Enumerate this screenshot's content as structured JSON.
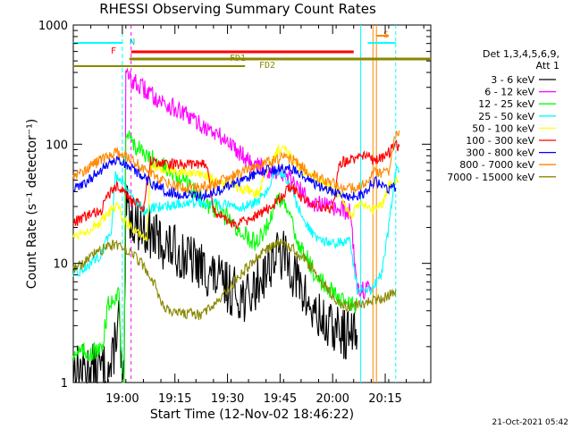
{
  "chart_data": {
    "type": "line",
    "title": "RHESSI Observing Summary Count Rates",
    "xlabel": "Start Time (12-Nov-02 18:46:22)",
    "ylabel": "Count Rate (s⁻¹ detector⁻¹)",
    "y_scale": "log",
    "ylim": [
      1,
      1000
    ],
    "xlim_minutes_after_1846": [
      0,
      102
    ],
    "x_ticks": [
      {
        "label": "19:00",
        "min": 14
      },
      {
        "label": "19:15",
        "min": 29
      },
      {
        "label": "19:30",
        "min": 44
      },
      {
        "label": "19:45",
        "min": 59
      },
      {
        "label": "20:00",
        "min": 74
      },
      {
        "label": "20:15",
        "min": 89
      }
    ],
    "y_ticks": [
      {
        "label": "1",
        "value": 1
      },
      {
        "label": "10",
        "value": 10
      },
      {
        "label": "100",
        "value": 100
      },
      {
        "label": "1000",
        "value": 1000
      }
    ],
    "legend_header": [
      "Det 1,3,4,5,6,9,",
      "Att 1"
    ],
    "legend_position": "right",
    "series": [
      {
        "name": "3 - 6 keV",
        "color": "#000000",
        "points": [
          [
            0,
            1.3
          ],
          [
            11,
            1.3
          ],
          [
            12,
            2.5
          ],
          [
            13,
            3.5
          ],
          [
            14,
            1.0
          ],
          [
            14.5,
            1.0
          ],
          [
            15,
            28
          ],
          [
            18,
            22
          ],
          [
            25,
            15
          ],
          [
            35,
            10
          ],
          [
            45,
            6
          ],
          [
            50,
            5
          ],
          [
            55,
            9
          ],
          [
            58,
            12
          ],
          [
            61,
            11
          ],
          [
            64,
            7
          ],
          [
            68,
            4
          ],
          [
            72,
            3
          ],
          [
            78,
            2.5
          ],
          [
            81,
            2.5
          ]
        ]
      },
      {
        "name": "6 - 12 keV",
        "color": "#ff00ff",
        "points": [
          [
            14.5,
            1.0
          ],
          [
            15,
            380
          ],
          [
            18,
            320
          ],
          [
            25,
            230
          ],
          [
            30,
            190
          ],
          [
            35,
            155
          ],
          [
            42,
            115
          ],
          [
            45,
            100
          ],
          [
            50,
            75
          ],
          [
            55,
            60
          ],
          [
            58,
            60
          ],
          [
            62,
            50
          ],
          [
            65,
            40
          ],
          [
            68,
            33
          ],
          [
            72,
            30
          ],
          [
            76,
            28
          ],
          [
            79,
            27
          ],
          [
            81,
            6
          ],
          [
            82,
            6
          ],
          [
            85,
            6
          ]
        ]
      },
      {
        "name": "12 - 25 keV",
        "color": "#00ff00",
        "points": [
          [
            0,
            1.8
          ],
          [
            8,
            1.8
          ],
          [
            10,
            4.5
          ],
          [
            13,
            6
          ],
          [
            14,
            1.0
          ],
          [
            14.5,
            1.0
          ],
          [
            15,
            125
          ],
          [
            17,
            105
          ],
          [
            20,
            80
          ],
          [
            25,
            70
          ],
          [
            28,
            55
          ],
          [
            32,
            48
          ],
          [
            38,
            32
          ],
          [
            44,
            24
          ],
          [
            48,
            18
          ],
          [
            52,
            15
          ],
          [
            55,
            20
          ],
          [
            57,
            28
          ],
          [
            59,
            35
          ],
          [
            61,
            28
          ],
          [
            63,
            18
          ],
          [
            66,
            12
          ],
          [
            69,
            8
          ],
          [
            73,
            6
          ],
          [
            77,
            5
          ],
          [
            81,
            4.5
          ]
        ]
      },
      {
        "name": "25 - 50 keV",
        "color": "#00ffff",
        "points": [
          [
            0,
            8
          ],
          [
            3,
            9
          ],
          [
            8,
            12
          ],
          [
            11,
            20
          ],
          [
            12,
            55
          ],
          [
            14,
            50
          ],
          [
            15,
            45
          ],
          [
            17,
            35
          ],
          [
            20,
            28
          ],
          [
            25,
            30
          ],
          [
            32,
            32
          ],
          [
            40,
            32
          ],
          [
            45,
            30
          ],
          [
            48,
            30
          ],
          [
            52,
            32
          ],
          [
            55,
            40
          ],
          [
            58,
            60
          ],
          [
            61,
            50
          ],
          [
            64,
            30
          ],
          [
            67,
            20
          ],
          [
            70,
            15
          ],
          [
            73,
            15
          ],
          [
            76,
            15
          ],
          [
            79,
            15
          ],
          [
            81,
            6
          ],
          [
            85,
            6
          ],
          [
            88,
            8
          ],
          [
            90,
            20
          ],
          [
            92,
            60
          ],
          [
            93,
            60
          ]
        ]
      },
      {
        "name": "50 - 100 keV",
        "color": "#ffff00",
        "points": [
          [
            0,
            17
          ],
          [
            4,
            19
          ],
          [
            8,
            22
          ],
          [
            11,
            28
          ],
          [
            13,
            30
          ],
          [
            14,
            24
          ],
          [
            15,
            22
          ],
          [
            17,
            20
          ],
          [
            19,
            18
          ],
          [
            21,
            16
          ],
          [
            22,
            65
          ],
          [
            25,
            62
          ],
          [
            30,
            58
          ],
          [
            35,
            55
          ],
          [
            38,
            55
          ],
          [
            40,
            50
          ],
          [
            44,
            45
          ],
          [
            48,
            42
          ],
          [
            51,
            40
          ],
          [
            53,
            38
          ],
          [
            55,
            60
          ],
          [
            58,
            85
          ],
          [
            60,
            100
          ],
          [
            62,
            80
          ],
          [
            64,
            65
          ],
          [
            67,
            55
          ],
          [
            70,
            52
          ],
          [
            72,
            45
          ],
          [
            74,
            42
          ],
          [
            76,
            38
          ],
          [
            79,
            25
          ],
          [
            82,
            32
          ],
          [
            85,
            28
          ],
          [
            88,
            30
          ],
          [
            90,
            45
          ],
          [
            92,
            50
          ],
          [
            93,
            48
          ]
        ]
      },
      {
        "name": "100 - 300 keV",
        "color": "#ff0000",
        "points": [
          [
            0,
            22
          ],
          [
            4,
            25
          ],
          [
            8,
            28
          ],
          [
            11,
            42
          ],
          [
            13,
            45
          ],
          [
            15,
            38
          ],
          [
            17,
            33
          ],
          [
            20,
            30
          ],
          [
            22,
            72
          ],
          [
            26,
            70
          ],
          [
            30,
            68
          ],
          [
            35,
            67
          ],
          [
            38,
            68
          ],
          [
            40,
            28
          ],
          [
            42,
            25
          ],
          [
            44,
            23
          ],
          [
            46,
            21
          ],
          [
            50,
            23
          ],
          [
            55,
            28
          ],
          [
            60,
            37
          ],
          [
            62,
            45
          ],
          [
            64,
            38
          ],
          [
            68,
            31
          ],
          [
            72,
            29
          ],
          [
            74,
            28
          ],
          [
            76,
            70
          ],
          [
            80,
            75
          ],
          [
            84,
            80
          ],
          [
            86,
            70
          ],
          [
            88,
            78
          ],
          [
            90,
            85
          ],
          [
            92,
            100
          ],
          [
            93,
            95
          ]
        ]
      },
      {
        "name": "300 - 800 keV",
        "color": "#0000ff",
        "points": [
          [
            0,
            42
          ],
          [
            3,
            46
          ],
          [
            6,
            55
          ],
          [
            9,
            64
          ],
          [
            12,
            73
          ],
          [
            14,
            70
          ],
          [
            17,
            62
          ],
          [
            20,
            52
          ],
          [
            23,
            46
          ],
          [
            26,
            41
          ],
          [
            30,
            38
          ],
          [
            35,
            37
          ],
          [
            40,
            39
          ],
          [
            45,
            45
          ],
          [
            50,
            53
          ],
          [
            55,
            60
          ],
          [
            60,
            63
          ],
          [
            63,
            60
          ],
          [
            66,
            52
          ],
          [
            70,
            45
          ],
          [
            74,
            40
          ],
          [
            77,
            37
          ],
          [
            80,
            37
          ],
          [
            83,
            39
          ],
          [
            86,
            50
          ],
          [
            88,
            45
          ],
          [
            90,
            43
          ],
          [
            92,
            43
          ]
        ]
      },
      {
        "name": "800 - 7000 keV",
        "color": "#ff8800",
        "points": [
          [
            0,
            55
          ],
          [
            3,
            60
          ],
          [
            6,
            68
          ],
          [
            9,
            77
          ],
          [
            12,
            85
          ],
          [
            14,
            82
          ],
          [
            17,
            73
          ],
          [
            20,
            63
          ],
          [
            23,
            55
          ],
          [
            26,
            48
          ],
          [
            30,
            44
          ],
          [
            35,
            43
          ],
          [
            40,
            46
          ],
          [
            45,
            53
          ],
          [
            50,
            62
          ],
          [
            55,
            70
          ],
          [
            60,
            78
          ],
          [
            63,
            73
          ],
          [
            66,
            62
          ],
          [
            70,
            53
          ],
          [
            74,
            47
          ],
          [
            77,
            43
          ],
          [
            80,
            43
          ],
          [
            83,
            46
          ],
          [
            86,
            60
          ],
          [
            88,
            56
          ],
          [
            90,
            60
          ],
          [
            92,
            120
          ],
          [
            93,
            130
          ]
        ]
      },
      {
        "name": "7000 - 15000 keV",
        "color": "#888800",
        "points": [
          [
            0,
            9
          ],
          [
            3,
            10
          ],
          [
            6,
            12
          ],
          [
            9,
            13.5
          ],
          [
            12,
            14.5
          ],
          [
            14,
            14
          ],
          [
            17,
            12
          ],
          [
            20,
            9.5
          ],
          [
            23,
            7
          ],
          [
            25,
            4.5
          ],
          [
            28,
            3.8
          ],
          [
            32,
            3.8
          ],
          [
            36,
            3.7
          ],
          [
            40,
            4.3
          ],
          [
            45,
            6.5
          ],
          [
            50,
            9.5
          ],
          [
            55,
            13
          ],
          [
            59,
            15
          ],
          [
            63,
            13
          ],
          [
            67,
            10
          ],
          [
            71,
            7
          ],
          [
            75,
            4.8
          ],
          [
            79,
            4.3
          ],
          [
            82,
            4.5
          ],
          [
            85,
            4.8
          ],
          [
            88,
            5
          ],
          [
            92,
            6
          ]
        ]
      }
    ],
    "annotations": [
      {
        "text": "N",
        "color": "#00cccc",
        "min": 15
      },
      {
        "text": "F",
        "color": "#ff0000",
        "min": 12.5
      },
      {
        "text": "FD1",
        "color": "#888800",
        "min": 49
      },
      {
        "text": "FD2",
        "color": "#888800",
        "min": 57
      },
      {
        "text": "S",
        "color": "#ff8800",
        "min": 86
      }
    ],
    "footer_date": "21-Oct-2021 05:42"
  }
}
